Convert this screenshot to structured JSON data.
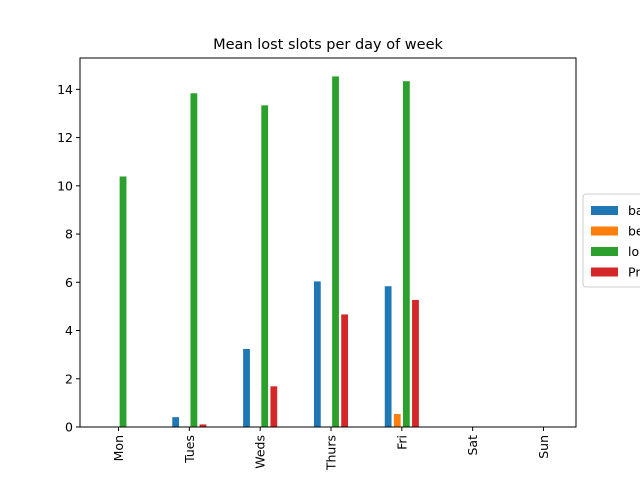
{
  "chart_data": {
    "type": "bar",
    "title": "Mean lost slots per day of week",
    "xlabel": "",
    "ylabel": "",
    "categories": [
      "Mon",
      "Tues",
      "Weds",
      "Thurs",
      "Fri",
      "Sat",
      "Sun"
    ],
    "ylim": [
      0,
      15.3
    ],
    "yticks": [
      0,
      2,
      4,
      6,
      8,
      10,
      12,
      14
    ],
    "grid": false,
    "legend_position": "right",
    "series": [
      {
        "name": "ba",
        "color": "#1f77b4",
        "values": [
          0,
          0.42,
          3.25,
          6.05,
          5.85,
          0,
          0
        ]
      },
      {
        "name": "be",
        "color": "#ff7f0e",
        "values": [
          0,
          0,
          0,
          0,
          0.55,
          0,
          0
        ]
      },
      {
        "name": "lo",
        "color": "#2ca02c",
        "values": [
          10.4,
          13.85,
          13.35,
          14.55,
          14.35,
          0,
          0
        ]
      },
      {
        "name": "Pr",
        "color": "#d62728",
        "values": [
          0,
          0.12,
          1.7,
          4.68,
          5.28,
          0,
          0
        ]
      }
    ]
  }
}
